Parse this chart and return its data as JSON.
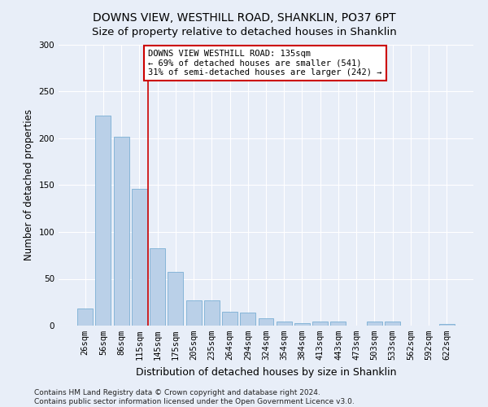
{
  "title": "DOWNS VIEW, WESTHILL ROAD, SHANKLIN, PO37 6PT",
  "subtitle": "Size of property relative to detached houses in Shanklin",
  "xlabel": "Distribution of detached houses by size in Shanklin",
  "ylabel": "Number of detached properties",
  "categories": [
    "26sqm",
    "56sqm",
    "86sqm",
    "115sqm",
    "145sqm",
    "175sqm",
    "205sqm",
    "235sqm",
    "264sqm",
    "294sqm",
    "324sqm",
    "354sqm",
    "384sqm",
    "413sqm",
    "443sqm",
    "473sqm",
    "503sqm",
    "533sqm",
    "562sqm",
    "592sqm",
    "622sqm"
  ],
  "values": [
    18,
    224,
    202,
    146,
    83,
    57,
    27,
    27,
    15,
    14,
    8,
    4,
    3,
    4,
    4,
    0,
    4,
    4,
    0,
    0,
    2
  ],
  "bar_color": "#bad0e8",
  "bar_edge_color": "#7aafd4",
  "background_color": "#e8eef8",
  "fig_background_color": "#e8eef8",
  "grid_color": "#ffffff",
  "annotation_text": "DOWNS VIEW WESTHILL ROAD: 135sqm\n← 69% of detached houses are smaller (541)\n31% of semi-detached houses are larger (242) →",
  "annotation_box_color": "#ffffff",
  "annotation_box_edge_color": "#cc0000",
  "vline_color": "#cc0000",
  "vline_pos": 3.5,
  "ylim": [
    0,
    300
  ],
  "yticks": [
    0,
    50,
    100,
    150,
    200,
    250,
    300
  ],
  "footer": "Contains HM Land Registry data © Crown copyright and database right 2024.\nContains public sector information licensed under the Open Government Licence v3.0.",
  "title_fontsize": 10,
  "xlabel_fontsize": 9,
  "ylabel_fontsize": 8.5,
  "tick_fontsize": 7.5,
  "annotation_fontsize": 7.5,
  "footer_fontsize": 6.5
}
